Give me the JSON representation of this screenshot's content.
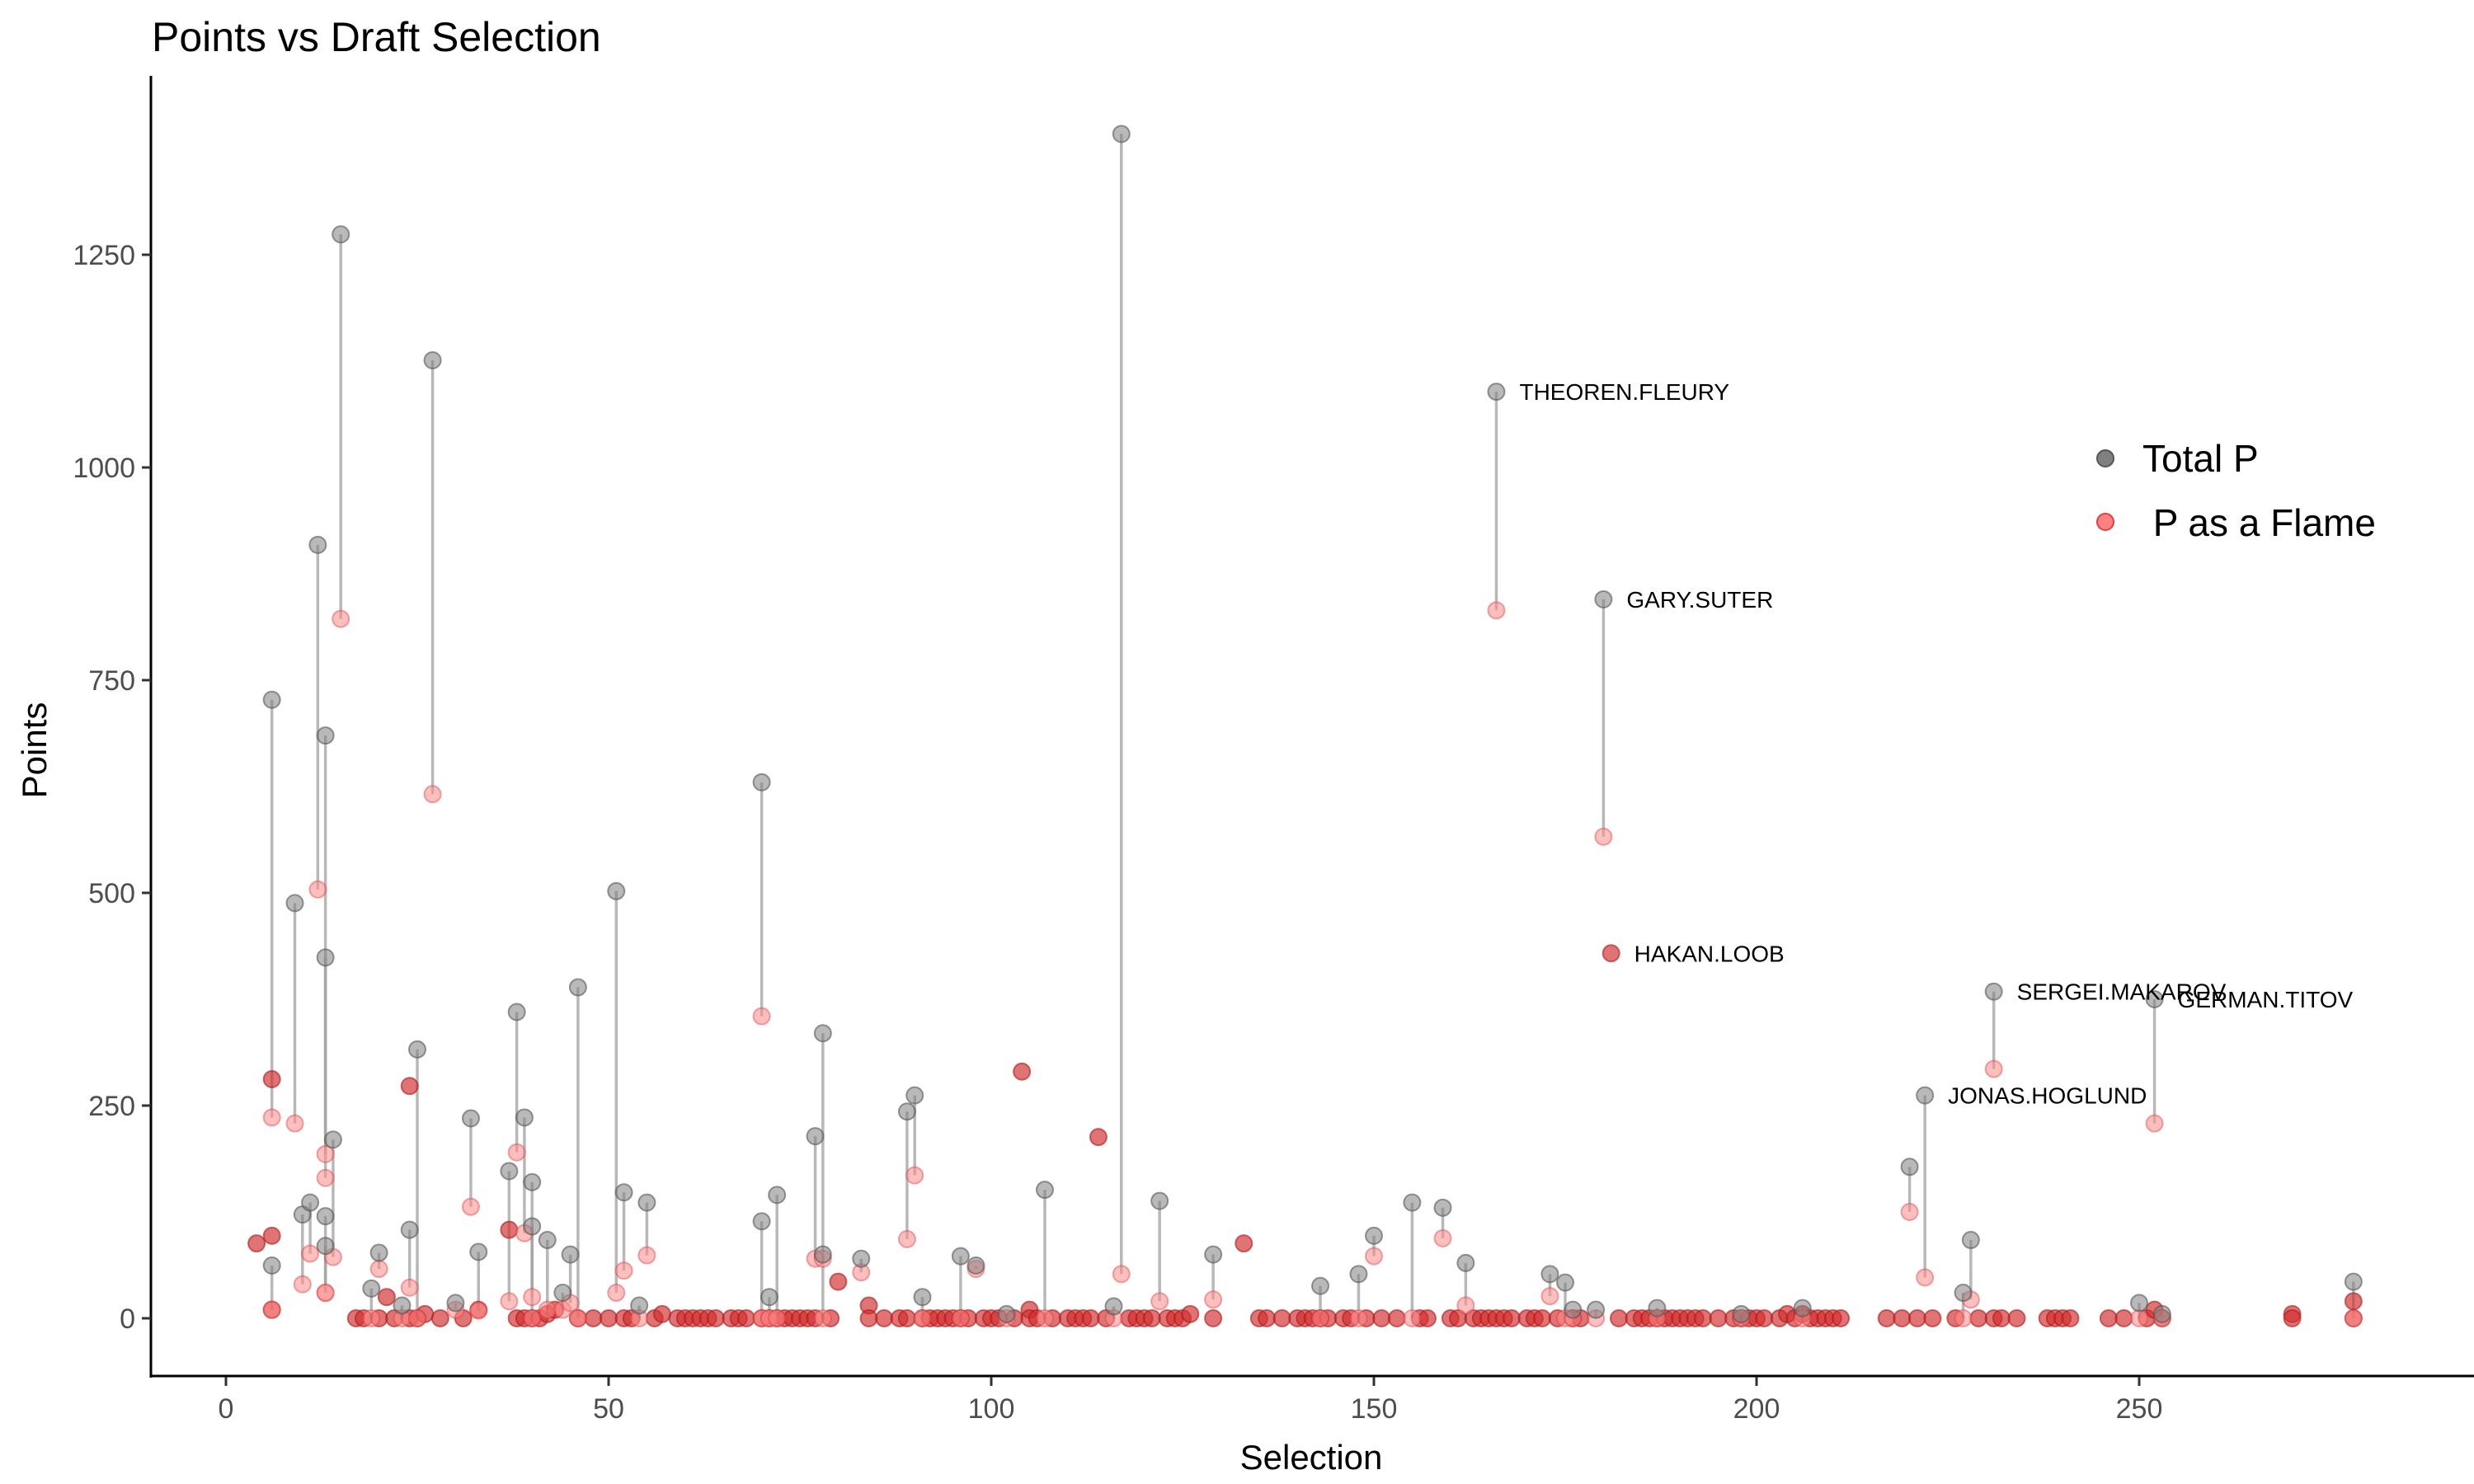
{
  "chart_data": {
    "type": "scatter",
    "title": "Points vs Draft Selection",
    "xlabel": "Selection",
    "ylabel": "Points",
    "xlim": [
      -10,
      290
    ],
    "ylim": [
      -70,
      1420
    ],
    "x_ticks": [
      0,
      50,
      100,
      150,
      200,
      250
    ],
    "y_ticks": [
      0,
      250,
      500,
      750,
      1000,
      1250
    ],
    "grid": false,
    "legend": {
      "placement": "right",
      "entries": [
        {
          "label": "Total P",
          "color": "#808080"
        },
        {
          "label": " P as a Flame",
          "color": "#ff8080"
        }
      ]
    },
    "colors": {
      "total": "#808080",
      "total_stroke": "#555555",
      "flame": "#ff8a8a",
      "flame_stroke": "#e04040",
      "overlap": "#b94a4a",
      "segment": "#a0a0a0"
    },
    "series": [
      {
        "name": "pairs",
        "description": "Each player: selection, total points, points as a Flame",
        "points": [
          [
            6,
            727,
            236
          ],
          [
            6,
            62,
            10
          ],
          [
            9,
            488,
            229
          ],
          [
            10,
            122,
            40
          ],
          [
            11,
            136,
            76
          ],
          [
            12,
            909,
            504
          ],
          [
            13,
            685,
            193
          ],
          [
            13,
            424,
            165
          ],
          [
            13,
            120,
            30
          ],
          [
            13,
            85,
            30
          ],
          [
            14,
            210,
            72
          ],
          [
            15,
            1274,
            822
          ],
          [
            19,
            35,
            0
          ],
          [
            20,
            77,
            58
          ],
          [
            23,
            15,
            0
          ],
          [
            24,
            104,
            36
          ],
          [
            25,
            316,
            0
          ],
          [
            27,
            1126,
            616
          ],
          [
            30,
            18,
            10
          ],
          [
            32,
            235,
            131
          ],
          [
            33,
            78,
            9
          ],
          [
            37,
            173,
            20
          ],
          [
            38,
            360,
            195
          ],
          [
            39,
            236,
            100
          ],
          [
            40,
            160,
            25
          ],
          [
            40,
            108,
            0
          ],
          [
            42,
            92,
            10
          ],
          [
            44,
            30,
            10
          ],
          [
            45,
            75,
            18
          ],
          [
            46,
            389,
            0
          ],
          [
            51,
            502,
            30
          ],
          [
            52,
            148,
            56
          ],
          [
            54,
            15,
            0
          ],
          [
            55,
            136,
            74
          ],
          [
            70,
            630,
            355
          ],
          [
            70,
            114,
            0
          ],
          [
            71,
            25,
            0
          ],
          [
            72,
            145,
            0
          ],
          [
            77,
            214,
            70
          ],
          [
            78,
            335,
            70
          ],
          [
            78,
            75,
            0
          ],
          [
            83,
            70,
            54
          ],
          [
            89,
            243,
            93
          ],
          [
            90,
            262,
            168
          ],
          [
            91,
            25,
            0
          ],
          [
            96,
            73,
            0
          ],
          [
            98,
            62,
            58
          ],
          [
            102,
            5,
            0
          ],
          [
            107,
            151,
            0
          ],
          [
            116,
            14,
            0
          ],
          [
            117,
            1392,
            52
          ],
          [
            122,
            138,
            20
          ],
          [
            129,
            75,
            22
          ],
          [
            143,
            38,
            0
          ],
          [
            148,
            52,
            0
          ],
          [
            150,
            97,
            73
          ],
          [
            155,
            136,
            0
          ],
          [
            159,
            130,
            94
          ],
          [
            162,
            65,
            15
          ],
          [
            166,
            1089,
            832
          ],
          [
            173,
            52,
            26
          ],
          [
            175,
            42,
            0
          ],
          [
            176,
            10,
            0
          ],
          [
            179,
            10,
            0
          ],
          [
            180,
            845,
            566
          ],
          [
            187,
            12,
            0
          ],
          [
            198,
            5,
            0
          ],
          [
            206,
            12,
            0
          ],
          [
            220,
            178,
            125
          ],
          [
            222,
            262,
            48
          ],
          [
            227,
            30,
            0
          ],
          [
            228,
            92,
            22
          ],
          [
            231,
            384,
            293
          ],
          [
            250,
            18,
            0
          ],
          [
            252,
            375,
            229
          ],
          [
            253,
            5,
            0
          ],
          [
            278,
            43,
            0
          ]
        ]
      },
      {
        "name": "overlap",
        "description": "Players whose Total P equals P as a Flame (points coincide)",
        "points": [
          [
            4,
            88
          ],
          [
            6,
            281
          ],
          [
            6,
            97
          ],
          [
            6,
            10
          ],
          [
            17,
            0
          ],
          [
            18,
            0
          ],
          [
            20,
            0
          ],
          [
            21,
            25
          ],
          [
            22,
            0
          ],
          [
            24,
            273
          ],
          [
            24,
            0
          ],
          [
            25,
            0
          ],
          [
            26,
            5
          ],
          [
            28,
            0
          ],
          [
            31,
            0
          ],
          [
            33,
            10
          ],
          [
            37,
            104
          ],
          [
            38,
            0
          ],
          [
            39,
            0
          ],
          [
            40,
            0
          ],
          [
            41,
            0
          ],
          [
            42,
            5
          ],
          [
            43,
            10
          ],
          [
            46,
            0
          ],
          [
            48,
            0
          ],
          [
            50,
            0
          ],
          [
            52,
            0
          ],
          [
            53,
            0
          ],
          [
            56,
            0
          ],
          [
            57,
            5
          ],
          [
            59,
            0
          ],
          [
            60,
            0
          ],
          [
            61,
            0
          ],
          [
            62,
            0
          ],
          [
            63,
            0
          ],
          [
            64,
            0
          ],
          [
            66,
            0
          ],
          [
            67,
            0
          ],
          [
            68,
            0
          ],
          [
            70,
            0
          ],
          [
            71,
            0
          ],
          [
            72,
            0
          ],
          [
            73,
            0
          ],
          [
            74,
            0
          ],
          [
            75,
            0
          ],
          [
            76,
            0
          ],
          [
            77,
            0
          ],
          [
            79,
            0
          ],
          [
            80,
            43
          ],
          [
            84,
            15
          ],
          [
            84,
            0
          ],
          [
            86,
            0
          ],
          [
            88,
            0
          ],
          [
            89,
            0
          ],
          [
            91,
            0
          ],
          [
            92,
            0
          ],
          [
            93,
            0
          ],
          [
            94,
            0
          ],
          [
            95,
            0
          ],
          [
            96,
            0
          ],
          [
            97,
            0
          ],
          [
            99,
            0
          ],
          [
            100,
            0
          ],
          [
            101,
            0
          ],
          [
            103,
            0
          ],
          [
            104,
            290
          ],
          [
            105,
            10
          ],
          [
            105,
            0
          ],
          [
            106,
            0
          ],
          [
            108,
            0
          ],
          [
            110,
            0
          ],
          [
            111,
            0
          ],
          [
            112,
            0
          ],
          [
            113,
            0
          ],
          [
            114,
            213
          ],
          [
            115,
            0
          ],
          [
            118,
            0
          ],
          [
            119,
            0
          ],
          [
            120,
            0
          ],
          [
            121,
            0
          ],
          [
            123,
            0
          ],
          [
            124,
            0
          ],
          [
            125,
            0
          ],
          [
            126,
            5
          ],
          [
            129,
            0
          ],
          [
            133,
            88
          ],
          [
            135,
            0
          ],
          [
            136,
            0
          ],
          [
            138,
            0
          ],
          [
            140,
            0
          ],
          [
            141,
            0
          ],
          [
            142,
            0
          ],
          [
            143,
            0
          ],
          [
            144,
            0
          ],
          [
            146,
            0
          ],
          [
            147,
            0
          ],
          [
            149,
            0
          ],
          [
            151,
            0
          ],
          [
            153,
            0
          ],
          [
            156,
            0
          ],
          [
            157,
            0
          ],
          [
            160,
            0
          ],
          [
            161,
            0
          ],
          [
            163,
            0
          ],
          [
            164,
            0
          ],
          [
            165,
            0
          ],
          [
            166,
            0
          ],
          [
            167,
            0
          ],
          [
            168,
            0
          ],
          [
            170,
            0
          ],
          [
            171,
            0
          ],
          [
            172,
            0
          ],
          [
            174,
            0
          ],
          [
            176,
            0
          ],
          [
            177,
            0
          ],
          [
            181,
            429
          ],
          [
            182,
            0
          ],
          [
            184,
            0
          ],
          [
            185,
            0
          ],
          [
            186,
            0
          ],
          [
            187,
            0
          ],
          [
            188,
            0
          ],
          [
            189,
            0
          ],
          [
            190,
            0
          ],
          [
            191,
            0
          ],
          [
            192,
            0
          ],
          [
            193,
            0
          ],
          [
            195,
            0
          ],
          [
            197,
            0
          ],
          [
            198,
            0
          ],
          [
            199,
            0
          ],
          [
            200,
            0
          ],
          [
            201,
            0
          ],
          [
            203,
            0
          ],
          [
            204,
            5
          ],
          [
            205,
            0
          ],
          [
            206,
            5
          ],
          [
            207,
            0
          ],
          [
            208,
            0
          ],
          [
            209,
            0
          ],
          [
            210,
            0
          ],
          [
            211,
            0
          ],
          [
            217,
            0
          ],
          [
            219,
            0
          ],
          [
            221,
            0
          ],
          [
            223,
            0
          ],
          [
            226,
            0
          ],
          [
            229,
            0
          ],
          [
            231,
            0
          ],
          [
            232,
            0
          ],
          [
            234,
            0
          ],
          [
            238,
            0
          ],
          [
            239,
            0
          ],
          [
            240,
            0
          ],
          [
            241,
            0
          ],
          [
            246,
            0
          ],
          [
            248,
            0
          ],
          [
            251,
            0
          ],
          [
            252,
            10
          ],
          [
            253,
            0
          ],
          [
            270,
            5
          ],
          [
            270,
            0
          ],
          [
            278,
            20
          ],
          [
            278,
            0
          ]
        ]
      }
    ],
    "annotations": [
      {
        "label": "THEOREN.FLEURY",
        "x": 166,
        "y": 1089
      },
      {
        "label": "GARY.SUTER",
        "x": 180,
        "y": 845
      },
      {
        "label": "HAKAN.LOOB",
        "x": 181,
        "y": 429
      },
      {
        "label": "SERGEI.MAKAROV",
        "x": 231,
        "y": 384
      },
      {
        "label": "GERMAN.TITOV",
        "x": 252,
        "y": 375
      },
      {
        "label": "JONAS.HOGLUND",
        "x": 222,
        "y": 262
      }
    ]
  }
}
